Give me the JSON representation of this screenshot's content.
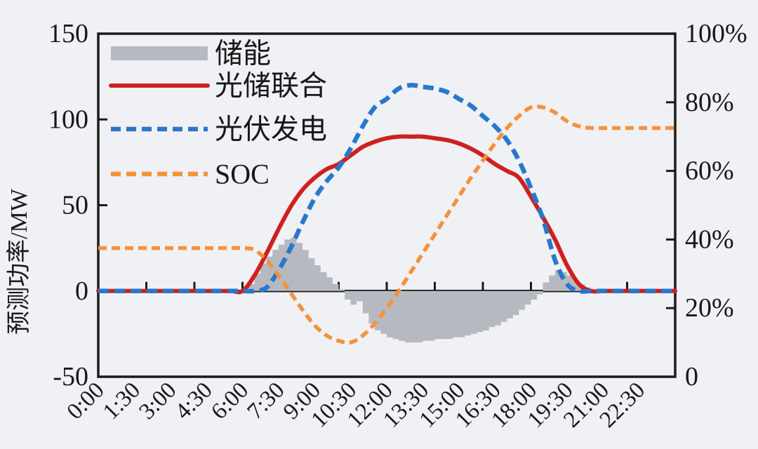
{
  "page": {
    "background": "#f0f1f5",
    "ink_color": "#1a1a1a"
  },
  "axes": {
    "left_title": "预测功率/MW",
    "left_tick_labels": [
      "150",
      "100",
      "50",
      "0",
      "-50"
    ],
    "right_tick_labels": [
      "100%",
      "80%",
      "60%",
      "40%",
      "20%",
      "0"
    ],
    "x_tick_labels": [
      "0:00",
      "1:30",
      "3:00",
      "4:30",
      "6:00",
      "7:30",
      "9:00",
      "10:30",
      "12:00",
      "13:30",
      "15:00",
      "16:30",
      "18:00",
      "19:30",
      "21:00",
      "22:30"
    ]
  },
  "legend": {
    "items": [
      {
        "label": "储能",
        "swatch": "area",
        "color": "#b6b9bf"
      },
      {
        "label": "光储联合",
        "swatch": "solid-line",
        "color": "#cd2120"
      },
      {
        "label": "光伏发电",
        "swatch": "dashed-line",
        "color": "#2878cc"
      },
      {
        "label": "SOC",
        "swatch": "dashed-line",
        "color": "#f5923e"
      }
    ]
  },
  "chart_data": {
    "type": "line",
    "title": "",
    "x_unit": "hour-of-day",
    "x_range": [
      0,
      24
    ],
    "x_tick_label_interval_hours": 1.5,
    "x_tick_mark_interval_hours": 2,
    "left_axis": {
      "label": "预测功率/MW",
      "ylim": [
        -50,
        150
      ]
    },
    "right_axis": {
      "label": "SOC",
      "ylim_percent": [
        0,
        100
      ]
    },
    "grid": false,
    "legend_position": "upper-left",
    "series": [
      {
        "name": "储能",
        "axis": "left",
        "style": "step-area",
        "color": "#b6b9bf",
        "x_start": 6,
        "x_step": 0.25,
        "values": [
          0,
          4,
          10,
          16,
          20,
          24,
          27,
          30,
          31,
          28,
          24,
          19,
          15,
          11,
          8,
          4,
          1,
          -5,
          -8,
          -6,
          -13,
          -19,
          -23,
          -25,
          -27,
          -28,
          -29,
          -30,
          -30,
          -30,
          -29,
          -29,
          -28,
          -28,
          -28,
          -27,
          -27,
          -26,
          -25,
          -24,
          -23,
          -21,
          -20,
          -18,
          -16,
          -14,
          -11,
          -8,
          -5,
          -2,
          5,
          9,
          12,
          11,
          9,
          6,
          4,
          2,
          0
        ]
      },
      {
        "name": "光储联合",
        "axis": "left",
        "style": "solid",
        "color": "#cd2120",
        "x_start": 0,
        "x_step": 0.5,
        "values": [
          0,
          0,
          0,
          0,
          0,
          0,
          0,
          0,
          0,
          0,
          0,
          0,
          0,
          9,
          22,
          36,
          49,
          59,
          66,
          71,
          74,
          79,
          84,
          87,
          89,
          90,
          90,
          90,
          89,
          88,
          86,
          83,
          79,
          74,
          70,
          66,
          55,
          43,
          30,
          15,
          4,
          0,
          0,
          0,
          0,
          0,
          0,
          0,
          0
        ]
      },
      {
        "name": "光伏发电",
        "axis": "left",
        "style": "dashed",
        "color": "#2878cc",
        "x_start": 0,
        "x_step": 0.5,
        "values": [
          0,
          0,
          0,
          0,
          0,
          0,
          0,
          0,
          0,
          0,
          0,
          0,
          0,
          0,
          2,
          12,
          25,
          40,
          54,
          64,
          72,
          83,
          96,
          107,
          112,
          118,
          120,
          119,
          118,
          116,
          112,
          108,
          102,
          96,
          88,
          76,
          60,
          42,
          18,
          4,
          0,
          0,
          0,
          0,
          0,
          0,
          0,
          0,
          0
        ]
      },
      {
        "name": "SOC",
        "axis": "right",
        "style": "dashed",
        "color": "#f5923e",
        "x_start": 0,
        "x_step": 0.5,
        "values": [
          37.5,
          37.5,
          37.5,
          37.5,
          37.5,
          37.5,
          37.5,
          37.5,
          37.5,
          37.5,
          37.5,
          37.5,
          37.5,
          37,
          34,
          29.5,
          24.5,
          19.5,
          15,
          12,
          10.5,
          10,
          12,
          15.5,
          20,
          25,
          30.5,
          36,
          41.5,
          47,
          52.5,
          58,
          63,
          68,
          72.5,
          76,
          78.5,
          78.5,
          77,
          74.5,
          73,
          72.5,
          72.5,
          72.5,
          72.5,
          72.5,
          72.5,
          72.5,
          72.5
        ]
      }
    ]
  }
}
